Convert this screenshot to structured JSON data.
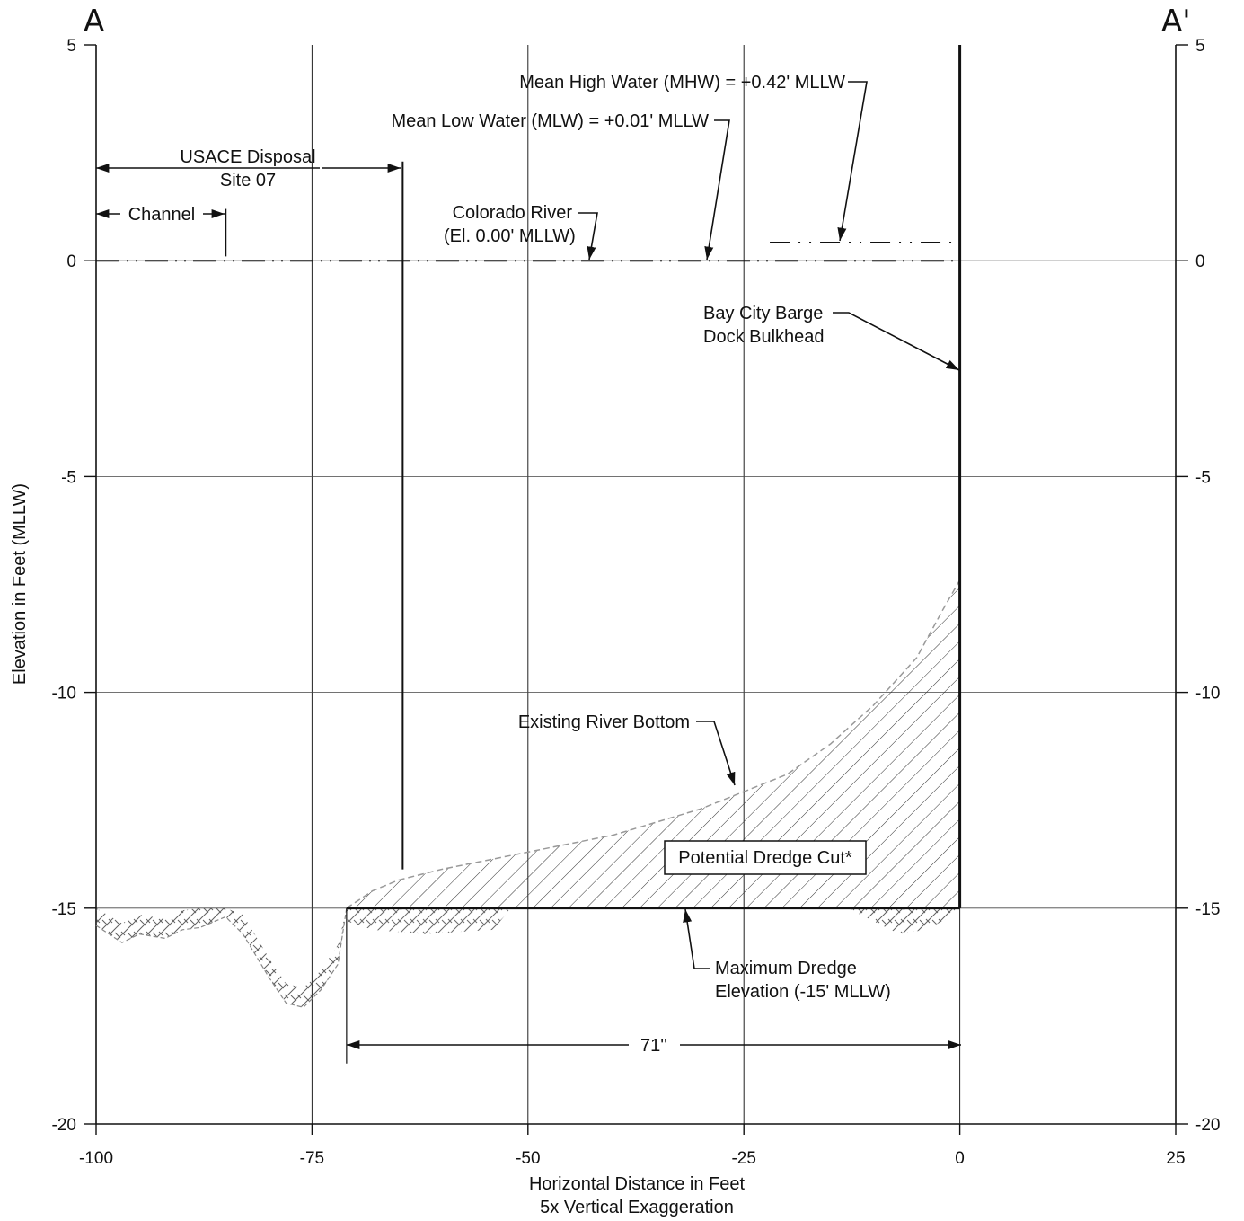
{
  "section": {
    "start_label": "A",
    "end_label": "A'"
  },
  "chart_data": {
    "type": "cross-section",
    "xlabel": "Horizontal Distance in Feet",
    "xlabel_note": "5x Vertical Exaggeration",
    "ylabel": "Elevation in Feet (MLLW)",
    "xlim": [
      -100,
      25
    ],
    "ylim": [
      -20,
      5
    ],
    "x_ticks": [
      -100,
      -75,
      -50,
      -25,
      0,
      25
    ],
    "y_ticks": [
      5,
      0,
      -5,
      -10,
      -15,
      -20
    ],
    "x_tick_labels": [
      "-100",
      "-75",
      "-50",
      "-25",
      "0",
      "25"
    ],
    "y_tick_labels": [
      "5",
      "0",
      "-5",
      "-10",
      "-15",
      "-20"
    ],
    "grid": true,
    "water_levels": [
      {
        "name": "Mean High Water (MHW) = +0.42' MLLW",
        "elevation": 0.42,
        "x_range": [
          -22,
          0
        ]
      },
      {
        "name": "Mean Low Water (MLW) = +0.01' MLLW",
        "elevation": 0.01,
        "x_range": [
          -100,
          0
        ]
      },
      {
        "name": "Colorado River (El. 0.00' MLLW)",
        "elevation": 0.0,
        "x_range": [
          -100,
          0
        ]
      }
    ],
    "existing_river_bottom": {
      "name": "Existing River Bottom",
      "x": [
        -71,
        -68,
        -65,
        -60,
        -55,
        -50,
        -45,
        -40,
        -35,
        -30,
        -25,
        -20,
        -15,
        -10,
        -5,
        -2,
        0
      ],
      "y": [
        -15.0,
        -14.6,
        -14.35,
        -14.1,
        -13.9,
        -13.7,
        -13.5,
        -13.3,
        -13.0,
        -12.7,
        -12.3,
        -11.9,
        -11.2,
        -10.3,
        -9.2,
        -8.1,
        -7.4
      ]
    },
    "below_dredge_profile": {
      "x": [
        -100,
        -97,
        -95,
        -92,
        -90,
        -88,
        -85,
        -83,
        -80,
        -78,
        -76,
        -74,
        -72,
        -71
      ],
      "y": [
        -15.4,
        -15.8,
        -15.6,
        -15.7,
        -15.5,
        -15.45,
        -15.2,
        -15.6,
        -16.6,
        -17.2,
        -17.3,
        -16.9,
        -16.3,
        -15.0
      ]
    },
    "below_dredge_patch_right": {
      "x": [
        -13,
        -10,
        -7,
        -4,
        -1,
        0
      ],
      "y": [
        -15.0,
        -15.3,
        -15.6,
        -15.5,
        -15.2,
        -15.0
      ]
    },
    "maximum_dredge_elevation": {
      "name": "Maximum Dredge Elevation (-15' MLLW)",
      "elevation": -15,
      "x_range": [
        -71,
        0
      ]
    },
    "bulkhead": {
      "name": "Bay City Barge Dock Bulkhead",
      "x": 0,
      "top": 5,
      "bottom": -15
    },
    "dredge_cut_label": "Potential Dredge Cut*",
    "zones": [
      {
        "name": "USACE Disposal Site 07",
        "x_range": [
          -100,
          -64.5
        ]
      },
      {
        "name": "Channel",
        "x_range": [
          -100,
          -85
        ]
      }
    ],
    "dimension": {
      "label": "71''",
      "x_range": [
        -71,
        0
      ],
      "elevation": -18.2
    }
  }
}
